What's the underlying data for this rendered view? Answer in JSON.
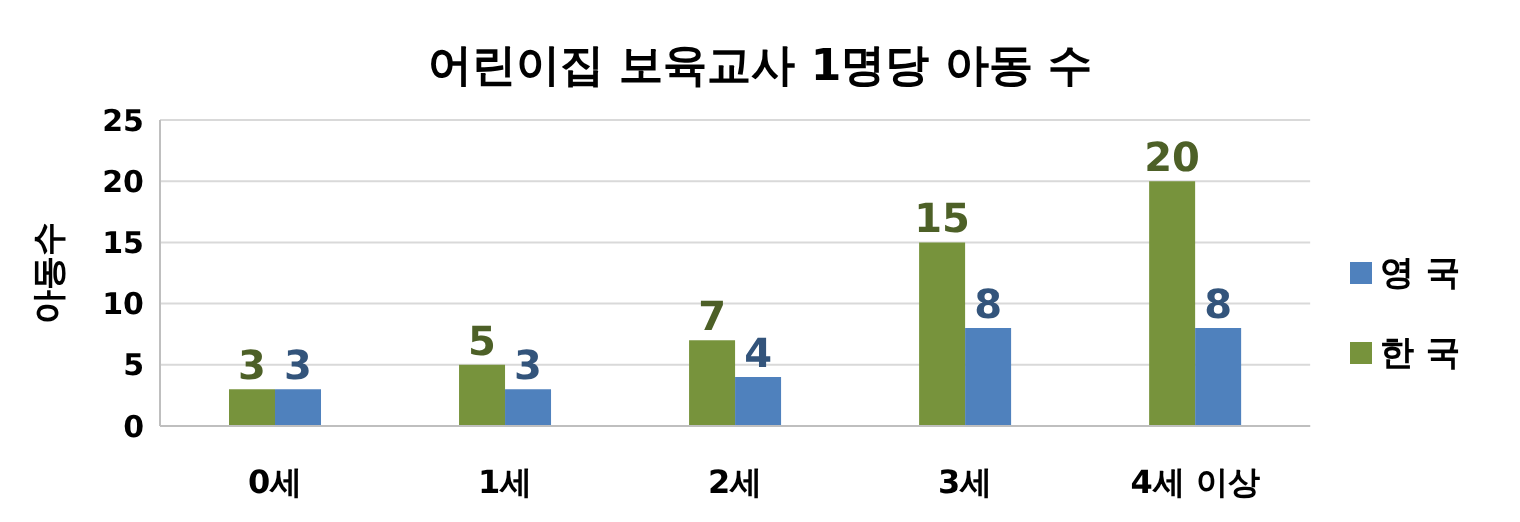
{
  "chart_data": {
    "type": "bar",
    "title": "어린이집 보육교사 1명당 아동 수",
    "ylabel": "아동수",
    "categories": [
      "0세",
      "1세",
      "2세",
      "3세",
      "4세 이상"
    ],
    "series": [
      {
        "name": "한 국",
        "color": "#77933c",
        "values": [
          3,
          5,
          7,
          15,
          20
        ]
      },
      {
        "name": "영 국",
        "color": "#4f81bd",
        "values": [
          3,
          3,
          4,
          8,
          8
        ]
      }
    ],
    "ylim": [
      0,
      25
    ],
    "yticks": [
      0,
      5,
      10,
      15,
      20,
      25
    ],
    "grid": "y",
    "legend": "right",
    "data_labels": true
  }
}
